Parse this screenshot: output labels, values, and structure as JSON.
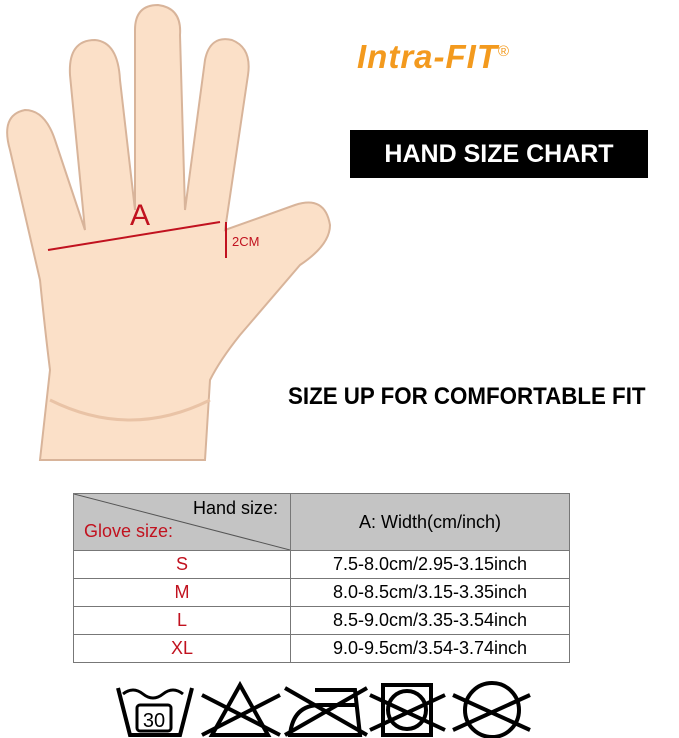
{
  "brand": {
    "name": "Intra-FIT",
    "mark": "®",
    "color": "#f39a1e"
  },
  "title": "HAND SIZE CHART",
  "tagline": "SIZE UP FOR COMFORTABLE FIT",
  "diagram": {
    "measure_label": "A",
    "offset_label": "2CM"
  },
  "table": {
    "header_hand": "Hand size:",
    "header_glove": "Glove size:",
    "header_width": "A: Width(cm/inch)",
    "rows": [
      {
        "size": "S",
        "width": "7.5-8.0cm/2.95-3.15inch"
      },
      {
        "size": "M",
        "width": "8.0-8.5cm/3.15-3.35inch"
      },
      {
        "size": "L",
        "width": "8.5-9.0cm/3.35-3.54inch"
      },
      {
        "size": "XL",
        "width": "9.0-9.5cm/3.54-3.74inch"
      }
    ]
  },
  "care_icons": [
    "wash-30-icon",
    "no-bleach-icon",
    "no-iron-icon",
    "no-tumble-dry-icon",
    "no-dry-clean-icon"
  ],
  "wash_temp": "30"
}
